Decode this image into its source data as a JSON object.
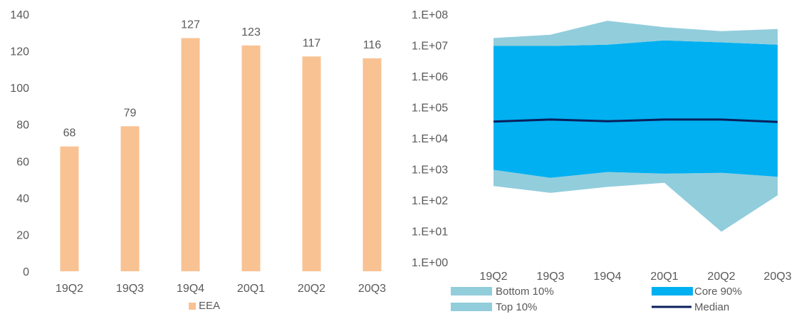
{
  "chart_data": [
    {
      "type": "bar",
      "categories": [
        "19Q2",
        "19Q3",
        "19Q4",
        "20Q1",
        "20Q2",
        "20Q3"
      ],
      "y_ticks": [
        "0",
        "20",
        "40",
        "60",
        "80",
        "100",
        "120",
        "140"
      ],
      "series": [
        {
          "name": "EEA",
          "values": [
            68,
            79,
            127,
            123,
            117,
            116
          ],
          "labels": [
            "68",
            "79",
            "127",
            "123",
            "117",
            "116"
          ],
          "color": "#F9C293"
        }
      ],
      "ylim": [
        0,
        140
      ],
      "legend_position": "bottom",
      "grid": false
    },
    {
      "type": "area",
      "y_scale": "log",
      "categories": [
        "19Q2",
        "19Q3",
        "19Q4",
        "20Q1",
        "20Q2",
        "20Q3"
      ],
      "y_ticks": [
        "1.E+00",
        "1.E+01",
        "1.E+02",
        "1.E+03",
        "1.E+04",
        "1.E+05",
        "1.E+06",
        "1.E+07",
        "1.E+08"
      ],
      "ylim": [
        1,
        100000000
      ],
      "series": [
        {
          "name": "Bottom 10%",
          "kind": "band",
          "color": "#92CDDC",
          "lower": [
            300,
            180,
            280,
            380,
            10,
            150
          ],
          "upper": [
            1000,
            550,
            850,
            750,
            800,
            600
          ]
        },
        {
          "name": "Core 90%",
          "kind": "band",
          "color": "#00B0F0",
          "lower": [
            1000,
            550,
            850,
            750,
            800,
            600
          ],
          "upper": [
            10000000,
            10000000,
            11000000,
            15000000,
            13000000,
            11000000
          ]
        },
        {
          "name": "Top 10%",
          "kind": "band",
          "color": "#92CDDC",
          "lower": [
            10000000,
            10000000,
            11000000,
            15000000,
            13000000,
            11000000
          ],
          "upper": [
            18000000,
            23000000,
            65000000,
            40000000,
            30000000,
            35000000
          ]
        },
        {
          "name": "Median",
          "kind": "line",
          "color": "#0A1F5C",
          "values": [
            36000,
            42000,
            37000,
            42000,
            42000,
            35000
          ]
        }
      ],
      "legend_position": "bottom",
      "grid": false
    }
  ]
}
